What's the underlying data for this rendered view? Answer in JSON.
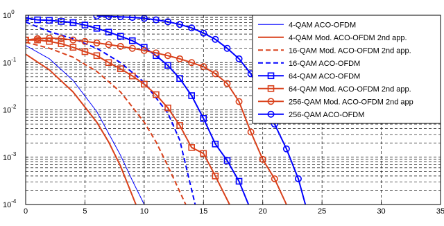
{
  "chart_data": {
    "type": "line",
    "title": "",
    "xlabel": "",
    "ylabel": "",
    "xlim": [
      0,
      35
    ],
    "ylim": [
      0.0001,
      1
    ],
    "yscale": "log",
    "grid": true,
    "legend_position": "top-right",
    "x_ticks": [
      "0",
      "5",
      "10",
      "15",
      "20",
      "25",
      "30",
      "35"
    ],
    "y_ticks": [
      {
        "base": "10",
        "exp": "-4"
      },
      {
        "base": "10",
        "exp": "-3"
      },
      {
        "base": "10",
        "exp": "-2"
      },
      {
        "base": "10",
        "exp": "-1"
      },
      {
        "base": "10",
        "exp": "0"
      }
    ],
    "series": [
      {
        "name": "4-QAM ACO-OFDM",
        "color": "#0000ff",
        "dash": "solid",
        "marker": "none",
        "width": 1,
        "x": [
          0,
          2,
          4,
          6,
          8,
          9,
          10.0
        ],
        "y": [
          0.23,
          0.12,
          0.042,
          0.0092,
          0.0011,
          0.00032,
          0.0001
        ]
      },
      {
        "name": "4-QAM Mod. ACO-OFDM 2nd app.",
        "color": "#d9401a",
        "dash": "solid",
        "marker": "none",
        "width": 2,
        "x": [
          0,
          2,
          4,
          6,
          7,
          8,
          9.3
        ],
        "y": [
          0.15,
          0.07,
          0.024,
          0.0055,
          0.0021,
          0.00065,
          0.0001
        ]
      },
      {
        "name": "16-QAM Mod. ACO-OFDM 2nd app.",
        "color": "#d9401a",
        "dash": "dashed",
        "marker": "none",
        "width": 2,
        "x": [
          0,
          2,
          4,
          6,
          8,
          10,
          11,
          12,
          13.5
        ],
        "y": [
          0.27,
          0.2,
          0.13,
          0.065,
          0.024,
          0.0055,
          0.0021,
          0.00065,
          0.0001
        ]
      },
      {
        "name": "16-QAM ACO-OFDM",
        "color": "#0000ff",
        "dash": "dashed",
        "marker": "none",
        "width": 2,
        "x": [
          0,
          2,
          4,
          6,
          8,
          10,
          12,
          13,
          14.3
        ],
        "y": [
          0.72,
          0.45,
          0.32,
          0.2,
          0.1,
          0.038,
          0.0085,
          0.0023,
          0.0001
        ]
      },
      {
        "name": "64-QAM ACO-OFDM",
        "color": "#0000ff",
        "dash": "solid",
        "marker": "square",
        "width": 2,
        "x": [
          0,
          1,
          2,
          3,
          4,
          5,
          6,
          7,
          8,
          9,
          10,
          11,
          12,
          13,
          14,
          15,
          16,
          17,
          18,
          18.8
        ],
        "y": [
          0.88,
          0.8,
          0.78,
          0.74,
          0.7,
          0.62,
          0.53,
          0.44,
          0.36,
          0.29,
          0.21,
          0.14,
          0.087,
          0.046,
          0.02,
          0.0066,
          0.0019,
          0.00085,
          0.00031,
          0.0001
        ]
      },
      {
        "name": "64-QAM Mod. ACO-OFDM 2nd app.",
        "color": "#d9401a",
        "dash": "solid",
        "marker": "square",
        "width": 2,
        "x": [
          0,
          1,
          2,
          3,
          4,
          5,
          6,
          7,
          8,
          9,
          10,
          11,
          12,
          13,
          14,
          15,
          16,
          17.2
        ],
        "y": [
          0.3,
          0.3,
          0.28,
          0.25,
          0.21,
          0.17,
          0.14,
          0.1,
          0.074,
          0.052,
          0.035,
          0.021,
          0.011,
          0.0047,
          0.0016,
          0.0012,
          0.0004,
          0.0001
        ]
      },
      {
        "name": "256-QAM Mod. ACO-OFDM 2nd app",
        "color": "#d9401a",
        "dash": "solid",
        "marker": "circle",
        "width": 2,
        "x": [
          0,
          1,
          2,
          3,
          4,
          5,
          6,
          7,
          8,
          9,
          10,
          11,
          12,
          13,
          14,
          15,
          16,
          17,
          18,
          19,
          20,
          21,
          22.0
        ],
        "y": [
          0.3,
          0.32,
          0.33,
          0.32,
          0.3,
          0.28,
          0.26,
          0.24,
          0.22,
          0.2,
          0.18,
          0.16,
          0.14,
          0.12,
          0.1,
          0.082,
          0.058,
          0.036,
          0.015,
          0.0034,
          0.0009,
          0.00035,
          0.0001
        ]
      },
      {
        "name": "256-QAM ACO-OFDM",
        "color": "#0000ff",
        "dash": "solid",
        "marker": "circle",
        "width": 2,
        "x": [
          6,
          7,
          8,
          9,
          10,
          11,
          12,
          13,
          14,
          15,
          16,
          17,
          18,
          19,
          20,
          21,
          22,
          23,
          23.6
        ],
        "y": [
          0.96,
          0.95,
          0.93,
          0.9,
          0.86,
          0.8,
          0.73,
          0.64,
          0.54,
          0.42,
          0.31,
          0.2,
          0.12,
          0.058,
          0.018,
          0.005,
          0.0015,
          0.00035,
          0.0001
        ]
      }
    ]
  }
}
